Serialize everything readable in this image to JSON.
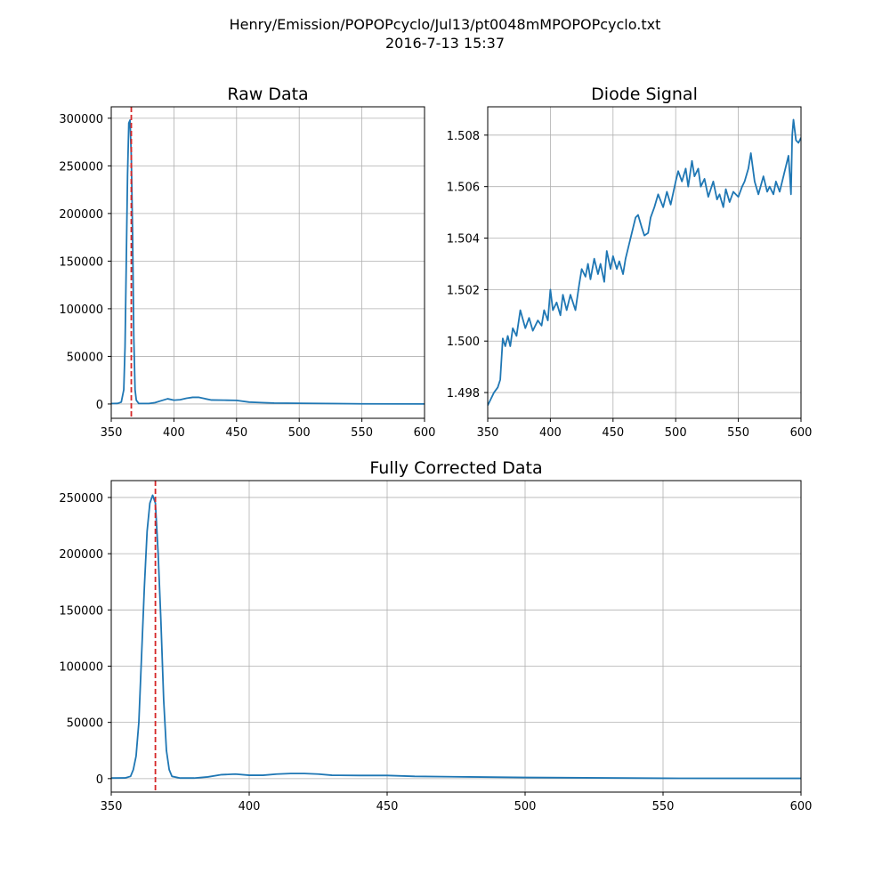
{
  "figure": {
    "title_line1": "Henry/Emission/POPOPcyclo/Jul13/pt0048mMPOPOPcyclo.txt",
    "title_line2": "2016-7-13     15:37"
  },
  "chart_data": [
    {
      "id": "raw",
      "type": "line",
      "title": "Raw Data",
      "xlim": [
        350,
        600
      ],
      "ylim": [
        -15000,
        312000
      ],
      "xticks": [
        350,
        400,
        450,
        500,
        550,
        600
      ],
      "yticks": [
        0,
        50000,
        100000,
        150000,
        200000,
        250000,
        300000
      ],
      "xtick_labels": [
        "350",
        "400",
        "450",
        "500",
        "550",
        "600"
      ],
      "ytick_labels": [
        "0",
        "50000",
        "100000",
        "150000",
        "200000",
        "250000",
        "300000"
      ],
      "grid": true,
      "series_color": "#1f77b4",
      "vline": {
        "x": 366,
        "color": "#d62728"
      },
      "x": [
        350,
        355,
        358,
        360,
        361,
        362,
        363,
        364,
        365,
        366,
        367,
        368,
        369,
        370,
        372,
        375,
        380,
        385,
        390,
        395,
        400,
        405,
        410,
        415,
        420,
        425,
        430,
        440,
        450,
        460,
        470,
        480,
        500,
        550,
        600
      ],
      "y": [
        500,
        600,
        2000,
        15000,
        60000,
        150000,
        240000,
        295000,
        298000,
        260000,
        180000,
        70000,
        15000,
        4000,
        500,
        500,
        500,
        1500,
        3500,
        5500,
        4000,
        4500,
        6000,
        7000,
        7000,
        5500,
        4200,
        4000,
        3800,
        2000,
        1500,
        1000,
        800,
        200,
        100
      ]
    },
    {
      "id": "diode",
      "type": "line",
      "title": "Diode Signal",
      "xlim": [
        350,
        600
      ],
      "ylim": [
        1.497,
        1.5091
      ],
      "xticks": [
        350,
        400,
        450,
        500,
        550,
        600
      ],
      "yticks": [
        1.498,
        1.5,
        1.502,
        1.504,
        1.506,
        1.508
      ],
      "xtick_labels": [
        "350",
        "400",
        "450",
        "500",
        "550",
        "600"
      ],
      "ytick_labels": [
        "1.498",
        "1.500",
        "1.502",
        "1.504",
        "1.506",
        "1.508"
      ],
      "grid": true,
      "series_color": "#1f77b4",
      "x": [
        350,
        352,
        355,
        358,
        360,
        362,
        364,
        366,
        368,
        370,
        373,
        376,
        380,
        383,
        386,
        390,
        393,
        395,
        398,
        400,
        402,
        405,
        408,
        410,
        413,
        416,
        420,
        423,
        425,
        428,
        430,
        432,
        435,
        438,
        440,
        443,
        445,
        448,
        450,
        453,
        455,
        458,
        460,
        463,
        465,
        468,
        470,
        473,
        475,
        478,
        480,
        483,
        486,
        490,
        493,
        496,
        500,
        502,
        505,
        508,
        510,
        513,
        515,
        518,
        520,
        523,
        526,
        530,
        533,
        535,
        538,
        540,
        543,
        546,
        550,
        553,
        555,
        558,
        560,
        563,
        566,
        570,
        573,
        575,
        578,
        580,
        583,
        586,
        588,
        590,
        591,
        592,
        593,
        594,
        596,
        598,
        600
      ],
      "y": [
        1.4975,
        1.4977,
        1.498,
        1.4982,
        1.4985,
        1.5001,
        1.4998,
        1.5002,
        1.4998,
        1.5005,
        1.5002,
        1.5012,
        1.5005,
        1.5009,
        1.5004,
        1.5008,
        1.5006,
        1.5012,
        1.5008,
        1.502,
        1.5012,
        1.5015,
        1.501,
        1.5018,
        1.5012,
        1.5018,
        1.5012,
        1.5022,
        1.5028,
        1.5025,
        1.503,
        1.5024,
        1.5032,
        1.5026,
        1.503,
        1.5023,
        1.5035,
        1.5028,
        1.5033,
        1.5028,
        1.5031,
        1.5026,
        1.5032,
        1.5038,
        1.5042,
        1.5048,
        1.5049,
        1.5044,
        1.5041,
        1.5042,
        1.5048,
        1.5052,
        1.5057,
        1.5052,
        1.5058,
        1.5053,
        1.5062,
        1.5066,
        1.5062,
        1.5067,
        1.506,
        1.507,
        1.5064,
        1.5067,
        1.506,
        1.5063,
        1.5056,
        1.5062,
        1.5055,
        1.5057,
        1.5052,
        1.5059,
        1.5054,
        1.5058,
        1.5056,
        1.506,
        1.5062,
        1.5067,
        1.5073,
        1.5062,
        1.5057,
        1.5064,
        1.5058,
        1.506,
        1.5057,
        1.5062,
        1.5058,
        1.5064,
        1.5068,
        1.5072,
        1.5065,
        1.5057,
        1.508,
        1.5086,
        1.5078,
        1.5077,
        1.5079
      ]
    },
    {
      "id": "corrected",
      "type": "line",
      "title": "Fully Corrected Data",
      "xlim": [
        350,
        600
      ],
      "ylim": [
        -12000,
        265000
      ],
      "xticks": [
        350,
        400,
        450,
        500,
        550,
        600
      ],
      "yticks": [
        0,
        50000,
        100000,
        150000,
        200000,
        250000
      ],
      "xtick_labels": [
        "350",
        "400",
        "450",
        "500",
        "550",
        "600"
      ],
      "ytick_labels": [
        "0",
        "50000",
        "100000",
        "150000",
        "200000",
        "250000"
      ],
      "grid": true,
      "series_color": "#1f77b4",
      "vline": {
        "x": 366,
        "color": "#d62728"
      },
      "x": [
        350,
        355,
        357,
        358,
        359,
        360,
        361,
        362,
        363,
        364,
        365,
        366,
        367,
        368,
        369,
        370,
        371,
        372,
        375,
        380,
        385,
        390,
        395,
        400,
        405,
        410,
        415,
        420,
        425,
        430,
        440,
        450,
        460,
        480,
        500,
        550,
        600
      ],
      "y": [
        500,
        600,
        2000,
        8000,
        20000,
        50000,
        110000,
        170000,
        220000,
        245000,
        252000,
        245000,
        200000,
        140000,
        70000,
        25000,
        8000,
        2000,
        500,
        500,
        1500,
        3500,
        4000,
        3000,
        3000,
        4000,
        4500,
        4500,
        4000,
        3000,
        2800,
        2800,
        2000,
        1500,
        1000,
        300,
        200
      ]
    }
  ]
}
